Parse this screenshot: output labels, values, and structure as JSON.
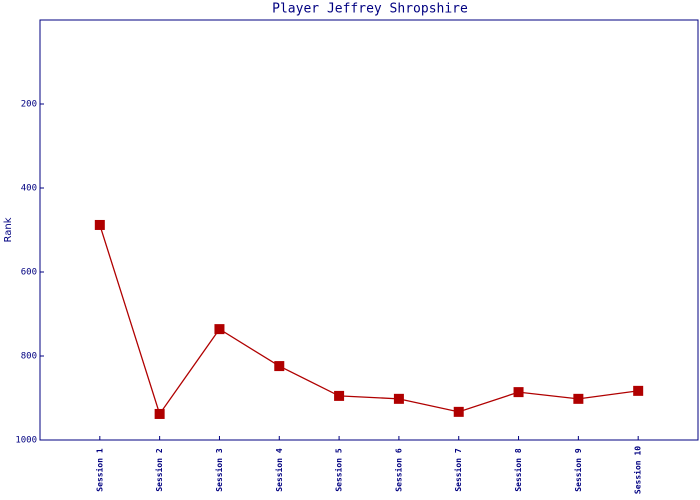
{
  "chart_data": {
    "type": "line",
    "title": "Player Jeffrey Shropshire",
    "y_label": "Rank",
    "categories": [
      "Session 1",
      "Session 2",
      "Session 3",
      "Session 4",
      "Session 5",
      "Session 6",
      "Session 7",
      "Session 8",
      "Session 9",
      "Session 10"
    ],
    "series": [
      {
        "name": "Rank",
        "color": "#b00000",
        "values": [
          488,
          938,
          736,
          824,
          895,
          902,
          933,
          886,
          902,
          883
        ]
      }
    ],
    "ylim": [
      0,
      1000
    ],
    "yticks": [
      200,
      400,
      600,
      800,
      1000
    ],
    "y_inverted": true
  }
}
